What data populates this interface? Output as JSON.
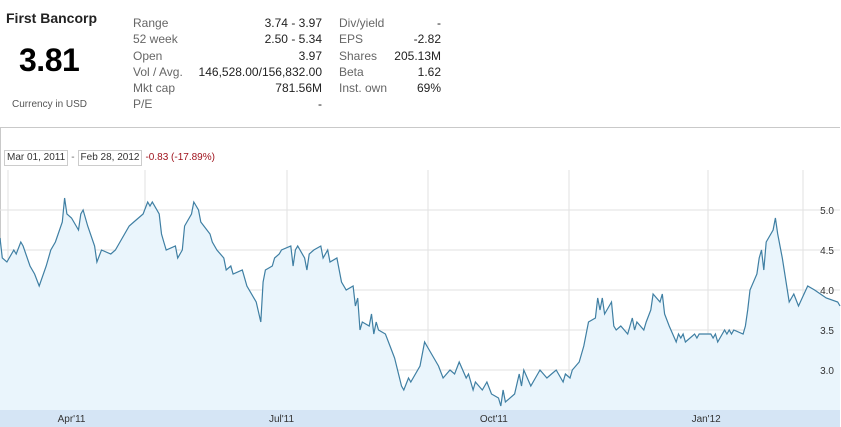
{
  "quote": {
    "company": "First Bancorp",
    "price": "3.81",
    "currency": "Currency in USD"
  },
  "stats_left": [
    {
      "label": "Range",
      "value": "3.74 - 3.97"
    },
    {
      "label": "52 week",
      "value": "2.50 - 5.34"
    },
    {
      "label": "Open",
      "value": "3.97"
    },
    {
      "label": "Vol / Avg.",
      "value": "146,528.00/156,832.00"
    },
    {
      "label": "Mkt cap",
      "value": "781.56M"
    },
    {
      "label": "P/E",
      "value": "-"
    }
  ],
  "stats_right": [
    {
      "label": "Div/yield",
      "value": "-"
    },
    {
      "label": "EPS",
      "value": "-2.82"
    },
    {
      "label": "Shares",
      "value": "205.13M"
    },
    {
      "label": "Beta",
      "value": "1.62"
    },
    {
      "label": "Inst. own",
      "value": "69%"
    }
  ],
  "range": {
    "start": "Mar 01, 2011",
    "separator": "-",
    "end": "Feb 28, 2012",
    "change": "-0.83 (-17.89%)"
  },
  "colors": {
    "line": "#3f7fa3",
    "fill": "#eaf5fc",
    "grid": "#e2e2e2",
    "axis_band": "#d5e5f5",
    "change_negative": "#a0141e"
  },
  "chart_data": {
    "type": "area",
    "x_start": "2011-03-01",
    "x_end": "2012-02-28",
    "x_tick_labels": [
      {
        "label": "Apr'11",
        "date": "2011-04-01"
      },
      {
        "label": "Jul'11",
        "date": "2011-07-01"
      },
      {
        "label": "Oct'11",
        "date": "2011-10-01"
      },
      {
        "label": "Jan'12",
        "date": "2012-01-01"
      }
    ],
    "y_ticks": [
      3.0,
      3.5,
      4.0,
      4.5,
      5.0
    ],
    "y_tick_labels": [
      "3.0",
      "3.5",
      "4.0",
      "4.5",
      "5.0"
    ],
    "ylim": [
      2.5,
      5.5
    ],
    "series": [
      {
        "points": [
          [
            "2011-03-01",
            4.65
          ],
          [
            "2011-03-02",
            4.4
          ],
          [
            "2011-03-04",
            4.35
          ],
          [
            "2011-03-07",
            4.5
          ],
          [
            "2011-03-08",
            4.45
          ],
          [
            "2011-03-10",
            4.6
          ],
          [
            "2011-03-11",
            4.55
          ],
          [
            "2011-03-14",
            4.3
          ],
          [
            "2011-03-16",
            4.2
          ],
          [
            "2011-03-18",
            4.05
          ],
          [
            "2011-03-21",
            4.3
          ],
          [
            "2011-03-23",
            4.5
          ],
          [
            "2011-03-25",
            4.6
          ],
          [
            "2011-03-28",
            4.85
          ],
          [
            "2011-03-29",
            5.15
          ],
          [
            "2011-03-30",
            4.95
          ],
          [
            "2011-04-01",
            4.9
          ],
          [
            "2011-04-04",
            4.75
          ],
          [
            "2011-04-05",
            4.95
          ],
          [
            "2011-04-06",
            5.0
          ],
          [
            "2011-04-08",
            4.8
          ],
          [
            "2011-04-11",
            4.55
          ],
          [
            "2011-04-12",
            4.35
          ],
          [
            "2011-04-14",
            4.5
          ],
          [
            "2011-04-18",
            4.45
          ],
          [
            "2011-04-20",
            4.5
          ],
          [
            "2011-04-22",
            4.6
          ],
          [
            "2011-04-26",
            4.8
          ],
          [
            "2011-04-28",
            4.85
          ],
          [
            "2011-05-02",
            4.95
          ],
          [
            "2011-05-04",
            5.1
          ],
          [
            "2011-05-05",
            5.05
          ],
          [
            "2011-05-06",
            5.1
          ],
          [
            "2011-05-09",
            4.95
          ],
          [
            "2011-05-10",
            4.7
          ],
          [
            "2011-05-11",
            4.6
          ],
          [
            "2011-05-12",
            4.5
          ],
          [
            "2011-05-16",
            4.55
          ],
          [
            "2011-05-17",
            4.4
          ],
          [
            "2011-05-19",
            4.5
          ],
          [
            "2011-05-20",
            4.8
          ],
          [
            "2011-05-23",
            4.95
          ],
          [
            "2011-05-24",
            5.1
          ],
          [
            "2011-05-25",
            5.05
          ],
          [
            "2011-05-26",
            5.0
          ],
          [
            "2011-05-27",
            4.85
          ],
          [
            "2011-05-31",
            4.7
          ],
          [
            "2011-06-01",
            4.6
          ],
          [
            "2011-06-03",
            4.5
          ],
          [
            "2011-06-06",
            4.4
          ],
          [
            "2011-06-07",
            4.25
          ],
          [
            "2011-06-09",
            4.3
          ],
          [
            "2011-06-10",
            4.2
          ],
          [
            "2011-06-14",
            4.25
          ],
          [
            "2011-06-16",
            4.05
          ],
          [
            "2011-06-20",
            3.85
          ],
          [
            "2011-06-22",
            3.6
          ],
          [
            "2011-06-23",
            4.1
          ],
          [
            "2011-06-24",
            4.25
          ],
          [
            "2011-06-27",
            4.3
          ],
          [
            "2011-06-28",
            4.4
          ],
          [
            "2011-06-30",
            4.45
          ],
          [
            "2011-07-01",
            4.5
          ],
          [
            "2011-07-05",
            4.55
          ],
          [
            "2011-07-06",
            4.3
          ],
          [
            "2011-07-07",
            4.5
          ],
          [
            "2011-07-08",
            4.55
          ],
          [
            "2011-07-11",
            4.4
          ],
          [
            "2011-07-12",
            4.25
          ],
          [
            "2011-07-13",
            4.45
          ],
          [
            "2011-07-15",
            4.5
          ],
          [
            "2011-07-18",
            4.55
          ],
          [
            "2011-07-19",
            4.4
          ],
          [
            "2011-07-21",
            4.5
          ],
          [
            "2011-07-22",
            4.35
          ],
          [
            "2011-07-25",
            4.4
          ],
          [
            "2011-07-27",
            4.1
          ],
          [
            "2011-07-29",
            4.0
          ],
          [
            "2011-08-01",
            4.05
          ],
          [
            "2011-08-02",
            3.8
          ],
          [
            "2011-08-03",
            3.9
          ],
          [
            "2011-08-04",
            3.5
          ],
          [
            "2011-08-05",
            3.6
          ],
          [
            "2011-08-08",
            3.55
          ],
          [
            "2011-08-09",
            3.7
          ],
          [
            "2011-08-10",
            3.45
          ],
          [
            "2011-08-11",
            3.6
          ],
          [
            "2011-08-12",
            3.5
          ],
          [
            "2011-08-15",
            3.45
          ],
          [
            "2011-08-17",
            3.3
          ],
          [
            "2011-08-19",
            3.15
          ],
          [
            "2011-08-22",
            2.8
          ],
          [
            "2011-08-23",
            2.75
          ],
          [
            "2011-08-25",
            2.9
          ],
          [
            "2011-08-26",
            2.85
          ],
          [
            "2011-08-30",
            3.05
          ],
          [
            "2011-09-01",
            3.35
          ],
          [
            "2011-09-02",
            3.3
          ],
          [
            "2011-09-06",
            3.1
          ],
          [
            "2011-09-07",
            3.05
          ],
          [
            "2011-09-09",
            2.9
          ],
          [
            "2011-09-12",
            3.0
          ],
          [
            "2011-09-14",
            2.95
          ],
          [
            "2011-09-16",
            3.1
          ],
          [
            "2011-09-19",
            2.9
          ],
          [
            "2011-09-20",
            2.95
          ],
          [
            "2011-09-22",
            2.75
          ],
          [
            "2011-09-23",
            2.85
          ],
          [
            "2011-09-26",
            2.75
          ],
          [
            "2011-09-28",
            2.85
          ],
          [
            "2011-09-30",
            2.7
          ],
          [
            "2011-10-03",
            2.65
          ],
          [
            "2011-10-04",
            2.55
          ],
          [
            "2011-10-05",
            2.75
          ],
          [
            "2011-10-06",
            2.6
          ],
          [
            "2011-10-10",
            2.7
          ],
          [
            "2011-10-12",
            2.95
          ],
          [
            "2011-10-13",
            2.8
          ],
          [
            "2011-10-14",
            3.0
          ],
          [
            "2011-10-17",
            2.8
          ],
          [
            "2011-10-19",
            2.9
          ],
          [
            "2011-10-21",
            3.0
          ],
          [
            "2011-10-24",
            2.9
          ],
          [
            "2011-10-26",
            2.95
          ],
          [
            "2011-10-28",
            3.0
          ],
          [
            "2011-10-31",
            2.85
          ],
          [
            "2011-11-01",
            2.95
          ],
          [
            "2011-11-03",
            2.9
          ],
          [
            "2011-11-04",
            3.0
          ],
          [
            "2011-11-07",
            3.1
          ],
          [
            "2011-11-09",
            3.3
          ],
          [
            "2011-11-11",
            3.6
          ],
          [
            "2011-11-14",
            3.65
          ],
          [
            "2011-11-15",
            3.9
          ],
          [
            "2011-11-16",
            3.75
          ],
          [
            "2011-11-17",
            3.9
          ],
          [
            "2011-11-18",
            3.7
          ],
          [
            "2011-11-21",
            3.85
          ],
          [
            "2011-11-22",
            3.55
          ],
          [
            "2011-11-23",
            3.5
          ],
          [
            "2011-11-25",
            3.55
          ],
          [
            "2011-11-28",
            3.45
          ],
          [
            "2011-11-29",
            3.55
          ],
          [
            "2011-11-30",
            3.65
          ],
          [
            "2011-12-01",
            3.5
          ],
          [
            "2011-12-02",
            3.6
          ],
          [
            "2011-12-05",
            3.5
          ],
          [
            "2011-12-06",
            3.6
          ],
          [
            "2011-12-08",
            3.75
          ],
          [
            "2011-12-09",
            3.95
          ],
          [
            "2011-12-12",
            3.85
          ],
          [
            "2011-12-13",
            3.95
          ],
          [
            "2011-12-14",
            3.7
          ],
          [
            "2011-12-16",
            3.55
          ],
          [
            "2011-12-19",
            3.35
          ],
          [
            "2011-12-20",
            3.45
          ],
          [
            "2011-12-21",
            3.4
          ],
          [
            "2011-12-22",
            3.45
          ],
          [
            "2011-12-23",
            3.35
          ],
          [
            "2011-12-27",
            3.45
          ],
          [
            "2011-12-28",
            3.4
          ],
          [
            "2011-12-29",
            3.45
          ],
          [
            "2012-01-03",
            3.45
          ],
          [
            "2012-01-04",
            3.4
          ],
          [
            "2012-01-05",
            3.45
          ],
          [
            "2012-01-06",
            3.35
          ],
          [
            "2012-01-09",
            3.5
          ],
          [
            "2012-01-10",
            3.45
          ],
          [
            "2012-01-11",
            3.5
          ],
          [
            "2012-01-12",
            3.45
          ],
          [
            "2012-01-13",
            3.5
          ],
          [
            "2012-01-17",
            3.45
          ],
          [
            "2012-01-18",
            3.55
          ],
          [
            "2012-01-19",
            3.75
          ],
          [
            "2012-01-20",
            4.0
          ],
          [
            "2012-01-23",
            4.2
          ],
          [
            "2012-01-24",
            4.4
          ],
          [
            "2012-01-25",
            4.5
          ],
          [
            "2012-01-26",
            4.25
          ],
          [
            "2012-01-27",
            4.6
          ],
          [
            "2012-01-30",
            4.75
          ],
          [
            "2012-01-31",
            4.9
          ],
          [
            "2012-02-01",
            4.7
          ],
          [
            "2012-02-03",
            4.4
          ],
          [
            "2012-02-06",
            3.85
          ],
          [
            "2012-02-08",
            3.95
          ],
          [
            "2012-02-10",
            3.8
          ],
          [
            "2012-02-14",
            4.05
          ],
          [
            "2012-02-17",
            4.0
          ],
          [
            "2012-02-22",
            3.9
          ],
          [
            "2012-02-27",
            3.85
          ],
          [
            "2012-02-28",
            3.8
          ]
        ]
      }
    ]
  }
}
